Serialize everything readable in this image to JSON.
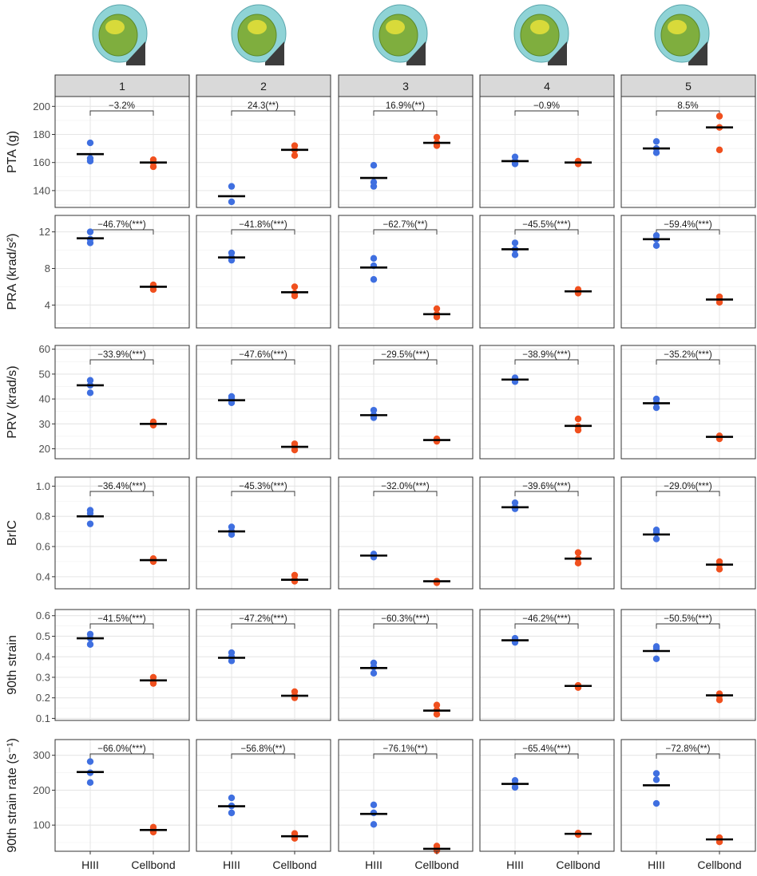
{
  "chart_data": {
    "type": "scatter",
    "title": "",
    "xlabel": "",
    "x_categories": [
      "HIII",
      "Cellbond"
    ],
    "colors": {
      "HIII": "#3f6fe0",
      "Cellbond": "#f0501e",
      "mean": "#000000"
    },
    "panels": [
      {
        "id": "p1",
        "label": "1"
      },
      {
        "id": "p2",
        "label": "2"
      },
      {
        "id": "p3",
        "label": "3"
      },
      {
        "id": "p4",
        "label": "4"
      },
      {
        "id": "p5",
        "label": "5"
      }
    ],
    "rows": [
      {
        "ylabel": "PTA (g)",
        "ylim": [
          128,
          207
        ],
        "yticks": [
          140,
          160,
          180,
          200
        ],
        "ytick_labels": [
          "140",
          "160",
          "180",
          "200"
        ],
        "cells": [
          {
            "annotation": "−3.2%",
            "hiii": [
              161,
              163,
              174
            ],
            "hiii_mean": 166,
            "cellbond": [
              157,
              160,
              162
            ],
            "cellbond_mean": 160
          },
          {
            "annotation": "24.3(**)",
            "hiii": [
              132,
              143
            ],
            "hiii_mean": 136,
            "cellbond": [
              165,
              169,
              172
            ],
            "cellbond_mean": 169
          },
          {
            "annotation": "16.9%(**)",
            "hiii": [
              143,
              146,
              158
            ],
            "hiii_mean": 149,
            "cellbond": [
              172,
              174,
              178
            ],
            "cellbond_mean": 174
          },
          {
            "annotation": "−0.9%",
            "hiii": [
              159,
              161,
              164
            ],
            "hiii_mean": 161,
            "cellbond": [
              159,
              160,
              161
            ],
            "cellbond_mean": 160
          },
          {
            "annotation": "8.5%",
            "hiii": [
              167,
              170,
              175
            ],
            "hiii_mean": 170,
            "cellbond": [
              169,
              185,
              193
            ],
            "cellbond_mean": 185
          }
        ]
      },
      {
        "ylabel": "PRA (krad/s²)",
        "ylim": [
          1.5,
          13.8
        ],
        "yticks": [
          4,
          8,
          12
        ],
        "ytick_labels": [
          "4",
          "8",
          "12"
        ],
        "cells": [
          {
            "annotation": "−46.7%(***)",
            "hiii": [
              10.8,
              11.2,
              12.0
            ],
            "hiii_mean": 11.3,
            "cellbond": [
              5.7,
              6.0,
              6.2
            ],
            "cellbond_mean": 6.0
          },
          {
            "annotation": "−41.8%(***)",
            "hiii": [
              8.9,
              9.2,
              9.7
            ],
            "hiii_mean": 9.2,
            "cellbond": [
              5.0,
              5.3,
              6.0
            ],
            "cellbond_mean": 5.4
          },
          {
            "annotation": "−62.7%(**)",
            "hiii": [
              6.8,
              8.3,
              9.1
            ],
            "hiii_mean": 8.1,
            "cellbond": [
              2.7,
              3.0,
              3.6
            ],
            "cellbond_mean": 3.0
          },
          {
            "annotation": "−45.5%(***)",
            "hiii": [
              9.5,
              10.1,
              10.8
            ],
            "hiii_mean": 10.1,
            "cellbond": [
              5.3,
              5.5,
              5.7
            ],
            "cellbond_mean": 5.5
          },
          {
            "annotation": "−59.4%(***)",
            "hiii": [
              10.5,
              11.2,
              11.6
            ],
            "hiii_mean": 11.2,
            "cellbond": [
              4.3,
              4.6,
              4.9
            ],
            "cellbond_mean": 4.6
          }
        ]
      },
      {
        "ylabel": "PRV (krad/s)",
        "ylim": [
          16,
          61.5
        ],
        "yticks": [
          20,
          30,
          40,
          50,
          60
        ],
        "ytick_labels": [
          "20",
          "30",
          "40",
          "50",
          "60"
        ],
        "cells": [
          {
            "annotation": "−33.9%(***)",
            "hiii": [
              42.5,
              45.5,
              47.5
            ],
            "hiii_mean": 45.5,
            "cellbond": [
              29.5,
              30.0,
              30.8
            ],
            "cellbond_mean": 30.0
          },
          {
            "annotation": "−47.6%(***)",
            "hiii": [
              38.5,
              40.0,
              41.0
            ],
            "hiii_mean": 39.5,
            "cellbond": [
              19.5,
              20.8,
              22.0
            ],
            "cellbond_mean": 20.8
          },
          {
            "annotation": "−29.5%(***)",
            "hiii": [
              32.5,
              33.5,
              35.5
            ],
            "hiii_mean": 33.5,
            "cellbond": [
              23.0,
              23.5,
              24.0
            ],
            "cellbond_mean": 23.5
          },
          {
            "annotation": "−38.9%(***)",
            "hiii": [
              47.0,
              47.8,
              48.5
            ],
            "hiii_mean": 47.8,
            "cellbond": [
              27.5,
              29.0,
              32.0
            ],
            "cellbond_mean": 29.2
          },
          {
            "annotation": "−35.2%(***)",
            "hiii": [
              36.5,
              38.5,
              40.0
            ],
            "hiii_mean": 38.3,
            "cellbond": [
              24.0,
              24.8,
              25.2
            ],
            "cellbond_mean": 24.8
          }
        ]
      },
      {
        "ylabel": "BrIC",
        "ylim": [
          0.32,
          1.06
        ],
        "yticks": [
          0.4,
          0.6,
          0.8,
          1.0
        ],
        "ytick_labels": [
          "0.4",
          "0.6",
          "0.8",
          "1.0"
        ],
        "cells": [
          {
            "annotation": "−36.4%(***)",
            "hiii": [
              0.75,
              0.82,
              0.84
            ],
            "hiii_mean": 0.8,
            "cellbond": [
              0.5,
              0.51,
              0.52
            ],
            "cellbond_mean": 0.51
          },
          {
            "annotation": "−45.3%(***)",
            "hiii": [
              0.68,
              0.7,
              0.73
            ],
            "hiii_mean": 0.7,
            "cellbond": [
              0.37,
              0.38,
              0.41
            ],
            "cellbond_mean": 0.38
          },
          {
            "annotation": "−32.0%(***)",
            "hiii": [
              0.53,
              0.54,
              0.55
            ],
            "hiii_mean": 0.54,
            "cellbond": [
              0.36,
              0.37,
              0.37
            ],
            "cellbond_mean": 0.37
          },
          {
            "annotation": "−39.6%(***)",
            "hiii": [
              0.85,
              0.86,
              0.89
            ],
            "hiii_mean": 0.86,
            "cellbond": [
              0.49,
              0.52,
              0.56
            ],
            "cellbond_mean": 0.52
          },
          {
            "annotation": "−29.0%(***)",
            "hiii": [
              0.65,
              0.69,
              0.71
            ],
            "hiii_mean": 0.68,
            "cellbond": [
              0.45,
              0.48,
              0.5
            ],
            "cellbond_mean": 0.48
          }
        ]
      },
      {
        "ylabel": "90th strain",
        "ylim": [
          0.09,
          0.63
        ],
        "yticks": [
          0.1,
          0.2,
          0.3,
          0.4,
          0.5,
          0.6
        ],
        "ytick_labels": [
          "0.1",
          "0.2",
          "0.3",
          "0.4",
          "0.5",
          "0.6"
        ],
        "cells": [
          {
            "annotation": "−41.5%(***)",
            "hiii": [
              0.46,
              0.49,
              0.51
            ],
            "hiii_mean": 0.49,
            "cellbond": [
              0.27,
              0.28,
              0.3
            ],
            "cellbond_mean": 0.285
          },
          {
            "annotation": "−47.2%(***)",
            "hiii": [
              0.38,
              0.4,
              0.42
            ],
            "hiii_mean": 0.395,
            "cellbond": [
              0.2,
              0.21,
              0.23
            ],
            "cellbond_mean": 0.21
          },
          {
            "annotation": "−60.3%(***)",
            "hiii": [
              0.32,
              0.35,
              0.37
            ],
            "hiii_mean": 0.345,
            "cellbond": [
              0.12,
              0.14,
              0.165
            ],
            "cellbond_mean": 0.138
          },
          {
            "annotation": "−46.2%(***)",
            "hiii": [
              0.47,
              0.48,
              0.49
            ],
            "hiii_mean": 0.48,
            "cellbond": [
              0.25,
              0.26,
              0.26
            ],
            "cellbond_mean": 0.258
          },
          {
            "annotation": "−50.5%(***)",
            "hiii": [
              0.39,
              0.44,
              0.45
            ],
            "hiii_mean": 0.428,
            "cellbond": [
              0.19,
              0.21,
              0.22
            ],
            "cellbond_mean": 0.212
          }
        ]
      },
      {
        "ylabel": "90th strain rate (s⁻¹)",
        "ylim": [
          25,
          345
        ],
        "yticks": [
          100,
          200,
          300
        ],
        "ytick_labels": [
          "100",
          "200",
          "300"
        ],
        "cells": [
          {
            "annotation": "−66.0%(***)",
            "hiii": [
              222,
              250,
              282
            ],
            "hiii_mean": 252,
            "cellbond": [
              80,
              86,
              94
            ],
            "cellbond_mean": 86
          },
          {
            "annotation": "−56.8%(**)",
            "hiii": [
              135,
              155,
              178
            ],
            "hiii_mean": 154,
            "cellbond": [
              62,
              68,
              76
            ],
            "cellbond_mean": 68
          },
          {
            "annotation": "−76.1%(**)",
            "hiii": [
              102,
              135,
              158
            ],
            "hiii_mean": 132,
            "cellbond": [
              27,
              32,
              40
            ],
            "cellbond_mean": 32
          },
          {
            "annotation": "−65.4%(***)",
            "hiii": [
              208,
              218,
              228
            ],
            "hiii_mean": 218,
            "cellbond": [
              73,
              75,
              77
            ],
            "cellbond_mean": 75
          },
          {
            "annotation": "−72.8%(**)",
            "hiii": [
              162,
              230,
              248
            ],
            "hiii_mean": 214,
            "cellbond": [
              52,
              59,
              64
            ],
            "cellbond_mean": 59
          }
        ]
      }
    ]
  }
}
